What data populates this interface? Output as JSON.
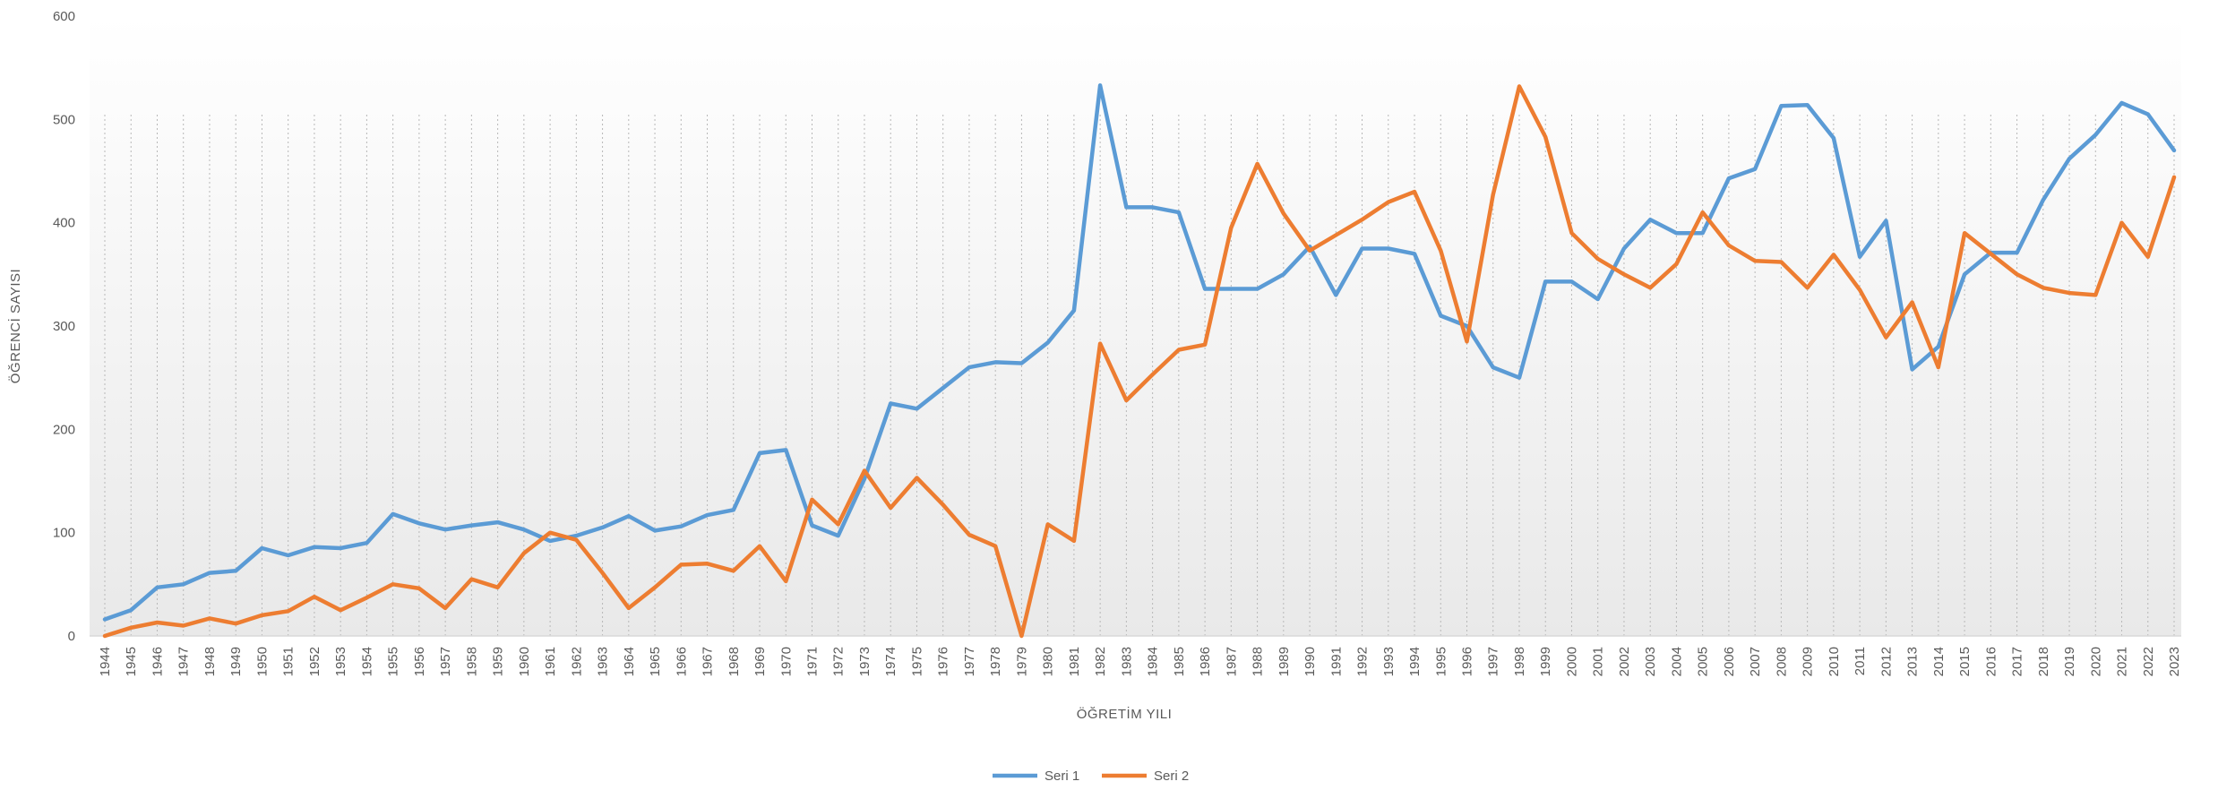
{
  "chart_data": {
    "type": "line",
    "xlabel": "ÖĞRETİM YILI",
    "ylabel": "ÖĞRENCİ SAYISI",
    "ylim": [
      0,
      600
    ],
    "yticks": [
      0,
      100,
      200,
      300,
      400,
      500,
      600
    ],
    "grid": "vertical dotted lines at each year",
    "legend_position": "bottom",
    "categories": [
      "1944",
      "1945",
      "1946",
      "1947",
      "1948",
      "1949",
      "1950",
      "1951",
      "1952",
      "1953",
      "1954",
      "1955",
      "1956",
      "1957",
      "1958",
      "1959",
      "1960",
      "1961",
      "1962",
      "1963",
      "1964",
      "1965",
      "1966",
      "1967",
      "1968",
      "1969",
      "1970",
      "1971",
      "1972",
      "1973",
      "1974",
      "1975",
      "1976",
      "1977",
      "1978",
      "1979",
      "1980",
      "1981",
      "1982",
      "1983",
      "1984",
      "1985",
      "1986",
      "1987",
      "1988",
      "1989",
      "1990",
      "1991",
      "1992",
      "1993",
      "1994",
      "1995",
      "1996",
      "1997",
      "1998",
      "1999",
      "2000",
      "2001",
      "2002",
      "2003",
      "2004",
      "2005",
      "2006",
      "2007",
      "2008",
      "2009",
      "2010",
      "2011",
      "2012",
      "2013",
      "2014",
      "2015",
      "2016",
      "2017",
      "2018",
      "2019",
      "2020",
      "2021",
      "2022",
      "2023"
    ],
    "series": [
      {
        "name": "Seri 1",
        "color": "#5b9bd5",
        "values": [
          16,
          25,
          47,
          50,
          61,
          63,
          85,
          78,
          86,
          85,
          90,
          118,
          109,
          103,
          107,
          110,
          103,
          92,
          97,
          105,
          116,
          102,
          106,
          117,
          122,
          177,
          180,
          107,
          97,
          152,
          225,
          220,
          240,
          260,
          265,
          264,
          284,
          315,
          533,
          415,
          415,
          410,
          336,
          336,
          336,
          350,
          377,
          330,
          375,
          375,
          370,
          310,
          300,
          260,
          250,
          343,
          343,
          326,
          375,
          403,
          390,
          390,
          443,
          452,
          513,
          514,
          482,
          367,
          402,
          258,
          280,
          350,
          371,
          371,
          422,
          462,
          485,
          516,
          505,
          470
        ]
      },
      {
        "name": "Seri 2",
        "color": "#ed7d31",
        "values": [
          0,
          8,
          13,
          10,
          17,
          12,
          20,
          24,
          38,
          25,
          37,
          50,
          46,
          27,
          55,
          47,
          80,
          100,
          93,
          61,
          27,
          47,
          69,
          70,
          63,
          87,
          53,
          132,
          108,
          160,
          124,
          153,
          127,
          98,
          87,
          0,
          108,
          92,
          283,
          228,
          253,
          277,
          282,
          395,
          457,
          409,
          373,
          388,
          403,
          420,
          430,
          373,
          285,
          427,
          532,
          483,
          390,
          365,
          350,
          337,
          360,
          410,
          378,
          363,
          362,
          337,
          369,
          335,
          289,
          323,
          260,
          390,
          370,
          350,
          337,
          332,
          330,
          400,
          367,
          444
        ]
      }
    ]
  }
}
